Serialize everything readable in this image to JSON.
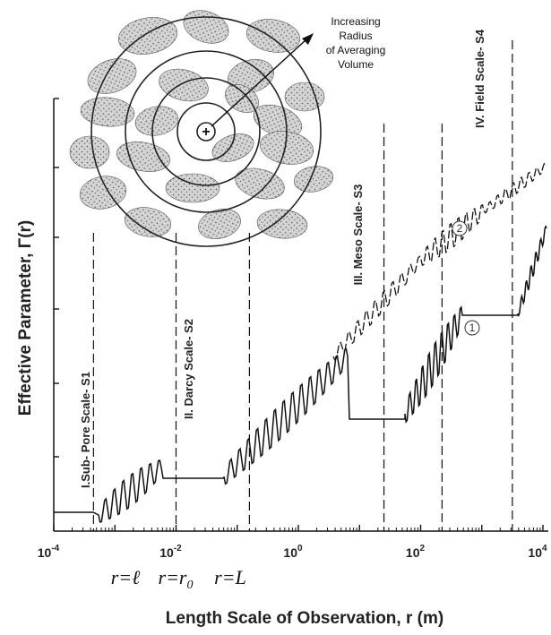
{
  "figure": {
    "y_axis_label": "Effective Parameter, Γ(r)",
    "x_axis_label": "Length Scale of Observation, r (m)",
    "x_ticks": [
      {
        "base": "10",
        "exp": "-4",
        "value": -4
      },
      {
        "base": "10",
        "exp": "-2",
        "value": -2
      },
      {
        "base": "10",
        "exp": "0",
        "value": 0
      },
      {
        "base": "10",
        "exp": "2",
        "value": 2
      },
      {
        "base": "10",
        "exp": "4",
        "value": 4
      }
    ],
    "scale_labels": [
      {
        "text": "I.Sub- Pore Scale- S1",
        "log_r": -4.0
      },
      {
        "text": "II. Darcy Scale- S2",
        "log_r": -1.55
      },
      {
        "text": "III. Meso Scale- S3",
        "log_r": 1.75
      },
      {
        "text": "IV. Field Scale- S4",
        "log_r": 3.7
      }
    ],
    "boundaries_log_r": [
      -3.35,
      -2.0,
      -0.8,
      1.4,
      2.35,
      3.5,
      4.35
    ],
    "r_markers": [
      {
        "text": "r=ℓ",
        "log_r": -3.5
      },
      {
        "text": "r=r",
        "sub": "0",
        "log_r": -2.0
      },
      {
        "text": "r=L",
        "log_r": -0.85
      }
    ],
    "curve_markers": [
      {
        "text": "2",
        "log_r": 3.9
      },
      {
        "text": "1",
        "log_r": 4.1
      }
    ],
    "inset_annotation": [
      "Increasing",
      "Radius",
      "of Averaging",
      "Volume"
    ],
    "inset_center_symbol": "+"
  }
}
